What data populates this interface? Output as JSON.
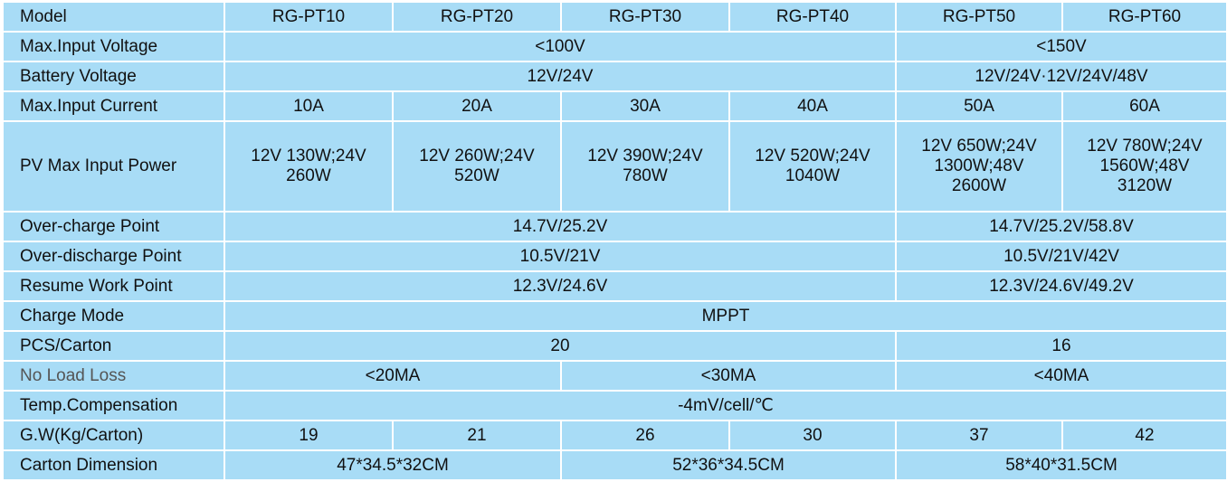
{
  "header": {
    "label": "Model",
    "models": [
      "RG-PT10",
      "RG-PT20",
      "RG-PT30",
      "RG-PT40",
      "RG-PT50",
      "RG-PT60"
    ]
  },
  "rows": {
    "max_input_voltage": {
      "label": "Max.Input Voltage",
      "low": "<100V",
      "high": "<150V"
    },
    "battery_voltage": {
      "label": "Battery Voltage",
      "low": "12V/24V",
      "high": "12V/24V·12V/24V/48V"
    },
    "max_input_current": {
      "label": "Max.Input Current",
      "values": [
        "10A",
        "20A",
        "30A",
        "40A",
        "50A",
        "60A"
      ]
    },
    "pv_max_input_power": {
      "label": "PV Max Input Power",
      "values": [
        [
          "12V 130W;24V",
          "260W"
        ],
        [
          "12V 260W;24V",
          "520W"
        ],
        [
          "12V 390W;24V",
          "780W"
        ],
        [
          "12V 520W;24V",
          "1040W"
        ],
        [
          "12V 650W;24V",
          "1300W;48V",
          "2600W"
        ],
        [
          "12V 780W;24V",
          "1560W;48V",
          "3120W"
        ]
      ]
    },
    "over_charge_point": {
      "label": "Over-charge Point",
      "low": "14.7V/25.2V",
      "high": "14.7V/25.2V/58.8V"
    },
    "over_discharge_point": {
      "label": "Over-discharge Point",
      "low": "10.5V/21V",
      "high": "10.5V/21V/42V"
    },
    "resume_work_point": {
      "label": "Resume Work Point",
      "low": "12.3V/24.6V",
      "high": "12.3V/24.6V/49.2V"
    },
    "charge_mode": {
      "label": "Charge Mode",
      "value": "MPPT"
    },
    "pcs_carton": {
      "label": "PCS/Carton",
      "low": "20",
      "high": "16"
    },
    "no_load_loss": {
      "label": "No Load Loss",
      "values": [
        "<20MA",
        "<30MA",
        "<40MA"
      ]
    },
    "temp_compensation": {
      "label": "Temp.Compensation",
      "value": "-4mV/cell/℃"
    },
    "gross_weight": {
      "label": "G.W(Kg/Carton)",
      "values": [
        "19",
        "21",
        "26",
        "30",
        "37",
        "42"
      ]
    },
    "carton_dimension": {
      "label": "Carton Dimension",
      "values": [
        "47*34.5*32CM",
        "52*36*34.5CM",
        "58*40*31.5CM"
      ]
    }
  },
  "colors": {
    "cell_background": "#a8dcf6",
    "grid": "#ffffff",
    "muted_text": "#555555"
  }
}
